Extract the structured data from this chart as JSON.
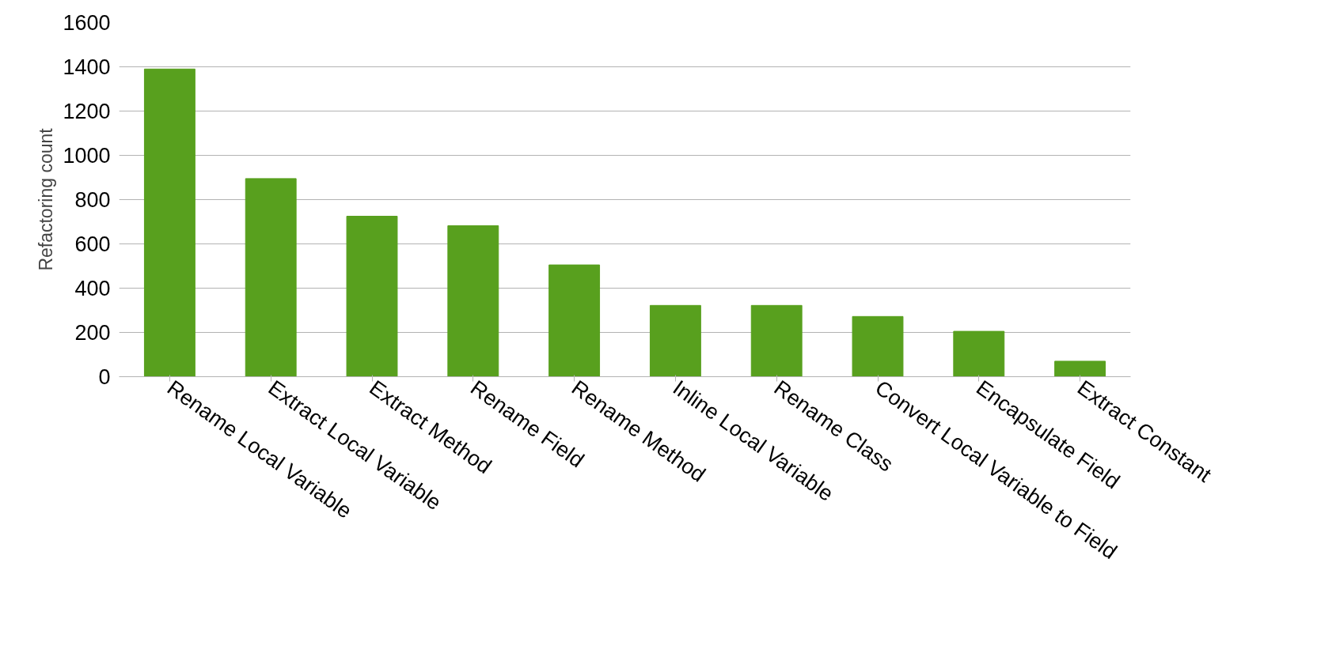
{
  "chart_data": {
    "type": "bar",
    "ylabel": "Refactoring count",
    "categories": [
      "Rename Local Variable",
      "Extract Local Variable",
      "Extract Method",
      "Rename Field",
      "Rename Method",
      "Inline Local Variable",
      "Rename Class",
      "Convert Local Variable to Field",
      "Encapsulate Field",
      "Extract Constant"
    ],
    "values": [
      1390,
      895,
      725,
      682,
      505,
      322,
      322,
      272,
      205,
      70
    ],
    "color": "#58a01e",
    "ylim": [
      0,
      1600
    ],
    "yticks": [
      0,
      200,
      400,
      600,
      800,
      1000,
      1200,
      1400,
      1600
    ],
    "grid": "y"
  }
}
